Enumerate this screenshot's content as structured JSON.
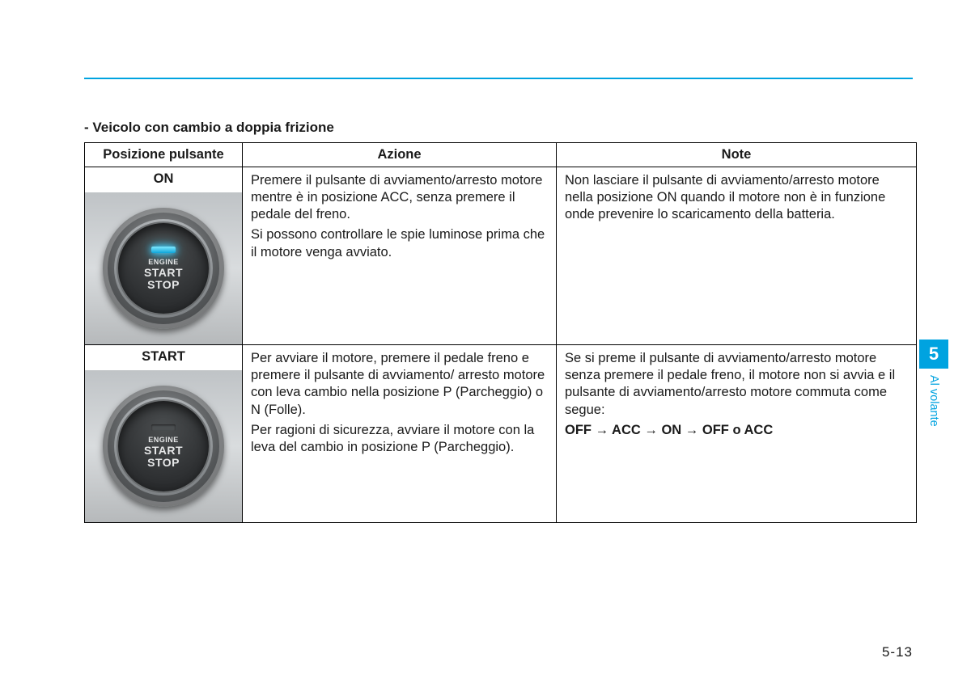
{
  "colors": {
    "accent": "#00a3e0",
    "text": "#1a1a1a",
    "background": "#ffffff",
    "button_panel_bg": "#c5c8ca",
    "button_dark": "#2c2e30",
    "led_on": "#3fd0ff",
    "led_off": "#4b4e50"
  },
  "page": {
    "subtitle": "- Veicolo con cambio a doppia frizione",
    "page_number": "5-13"
  },
  "sidetab": {
    "chapter_number": "5",
    "chapter_label": "Al volante"
  },
  "table": {
    "headers": {
      "col1": "Posizione pulsante",
      "col2": "Azione",
      "col3": "Note"
    },
    "rows": [
      {
        "label": "ON",
        "led_state": "on",
        "button_line1": "ENGINE",
        "button_line2": "START",
        "button_line3": "STOP",
        "action_p1": "Premere il pulsante di avviamento/arresto motore mentre è in posizione ACC, senza premere il pedale del freno.",
        "action_p2": "Si possono controllare le spie luminose prima che il motore venga avviato.",
        "note_p1": "Non lasciare il pulsante di avviamento/arresto motore nella posizione ON quando il motore non è in funzione onde prevenire lo scaricamento della batteria."
      },
      {
        "label": "START",
        "led_state": "off",
        "button_line1": "ENGINE",
        "button_line2": "START",
        "button_line3": "STOP",
        "action_p1": "Per avviare il motore, premere il pedale freno e premere il pulsante di avviamento/ arresto motore con leva cambio nella posizione P (Parcheggio) o N (Folle).",
        "action_p2": "Per ragioni di sicurezza, avviare il motore con la leva del cambio in posizione P (Parcheggio).",
        "note_p1": "Se si preme il pulsante di avviamento/arresto motore senza premere il pedale freno, il motore non si avvia e il pulsante di avviamento/arresto motore commuta come segue:",
        "note_sequence": "OFF → ACC → ON → OFF o ACC"
      }
    ]
  }
}
